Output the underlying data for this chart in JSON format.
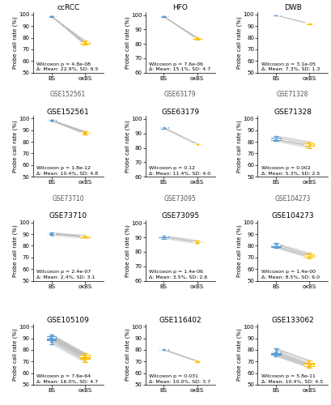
{
  "panels": [
    {
      "title": "ccRCC",
      "subtitle": "GSE152561",
      "wilcoxon": "Wilcoxon p = 4.8e-08",
      "delta": "Δ: Mean: 22.9%, SD: 9.5",
      "bs_mean": 98.5,
      "bs_std": 0.25,
      "bs_min": 97.8,
      "bs_max": 99.1,
      "ox_mean": 75.6,
      "ox_std": 5.0,
      "ox_min": 63.0,
      "ox_max": 84.0,
      "n": 20,
      "ylim": [
        50,
        102
      ],
      "yticks": [
        50,
        60,
        70,
        80,
        90,
        100
      ]
    },
    {
      "title": "HFO",
      "subtitle": "GSE63179",
      "wilcoxon": "Wilcoxon p = 7.6e-06",
      "delta": "Δ: Mean: 15.1%, SD: 4.7",
      "bs_mean": 99.0,
      "bs_std": 0.12,
      "bs_min": 98.7,
      "bs_max": 99.3,
      "ox_mean": 83.9,
      "ox_std": 2.0,
      "ox_min": 80.5,
      "ox_max": 87.0,
      "n": 16,
      "ylim": [
        60,
        102
      ],
      "yticks": [
        60,
        70,
        80,
        90,
        100
      ]
    },
    {
      "title": "DWB",
      "subtitle": "GSE71328",
      "wilcoxon": "Wilcoxon p = 3.1e-05",
      "delta": "Δ: Mean: 7.3%, SD: 1.3",
      "bs_mean": 99.35,
      "bs_std": 0.1,
      "bs_min": 99.1,
      "bs_max": 99.5,
      "ox_mean": 92.05,
      "ox_std": 0.3,
      "ox_min": 91.5,
      "ox_max": 92.5,
      "n": 7,
      "ylim": [
        50,
        102
      ],
      "yticks": [
        50,
        60,
        70,
        80,
        90,
        100
      ]
    },
    {
      "title": "GSE152561",
      "subtitle": "GSE73710",
      "wilcoxon": "Wilcoxon p = 1.8e-12",
      "delta": "Δ: Mean: 10.4%, SD: 4.8",
      "bs_mean": 98.4,
      "bs_std": 0.3,
      "bs_min": 97.8,
      "bs_max": 99.0,
      "ox_mean": 88.0,
      "ox_std": 2.5,
      "ox_min": 74.0,
      "ox_max": 91.5,
      "n": 28,
      "ylim": [
        50,
        102
      ],
      "yticks": [
        50,
        60,
        70,
        80,
        90,
        100
      ]
    },
    {
      "title": "GSE63179",
      "subtitle": "GSE73095",
      "wilcoxon": "Wilcoxon p = 0.12",
      "delta": "Δ: Mean: 11.4%, SD: 4.0",
      "bs_mean": 93.9,
      "bs_std": 0.2,
      "bs_min": 93.5,
      "bs_max": 94.2,
      "ox_mean": 82.5,
      "ox_std": 0.8,
      "ox_min": 81.0,
      "ox_max": 83.5,
      "n": 7,
      "ylim": [
        60,
        102
      ],
      "yticks": [
        60,
        70,
        80,
        90,
        100
      ]
    },
    {
      "title": "GSE71328",
      "subtitle": "GSE104273",
      "wilcoxon": "Wilcoxon p = 0.002",
      "delta": "Δ: Mean: 5.3%, SD: 2.5",
      "bs_mean": 82.0,
      "bs_std": 1.5,
      "bs_min": 78.5,
      "bs_max": 85.0,
      "ox_mean": 76.7,
      "ox_std": 1.8,
      "ox_min": 73.0,
      "ox_max": 80.0,
      "n": 15,
      "ylim": [
        50,
        102
      ],
      "yticks": [
        50,
        60,
        70,
        80,
        90,
        100
      ]
    },
    {
      "title": "GSE73710",
      "subtitle": "",
      "wilcoxon": "Wilcoxon p = 2.4e-07",
      "delta": "Δ: Mean: 2.4%, SD: 3.1",
      "bs_mean": 90.1,
      "bs_std": 0.8,
      "bs_min": 88.5,
      "bs_max": 91.5,
      "ox_mean": 87.7,
      "ox_std": 1.0,
      "ox_min": 85.5,
      "ox_max": 89.5,
      "n": 16,
      "ylim": [
        50,
        102
      ],
      "yticks": [
        50,
        60,
        70,
        80,
        90,
        100
      ]
    },
    {
      "title": "GSE73095",
      "subtitle": "",
      "wilcoxon": "Wilcoxon p = 1.4e-06",
      "delta": "Δ: Mean: 3.5%, SD: 2.6",
      "bs_mean": 90.2,
      "bs_std": 0.8,
      "bs_min": 88.5,
      "bs_max": 91.5,
      "ox_mean": 86.7,
      "ox_std": 1.0,
      "ox_min": 84.0,
      "ox_max": 88.0,
      "n": 10,
      "ylim": [
        60,
        102
      ],
      "yticks": [
        60,
        70,
        80,
        90,
        100
      ]
    },
    {
      "title": "GSE104273",
      "subtitle": "",
      "wilcoxon": "Wilcoxon p = 1.4e-00",
      "delta": "Δ: Mean: 8.5%, SD: 6.0",
      "bs_mean": 80.5,
      "bs_std": 1.5,
      "bs_min": 77.5,
      "bs_max": 84.0,
      "ox_mean": 72.0,
      "ox_std": 1.5,
      "ox_min": 69.5,
      "ox_max": 75.0,
      "n": 16,
      "ylim": [
        50,
        102
      ],
      "yticks": [
        50,
        60,
        70,
        80,
        90,
        100
      ]
    },
    {
      "title": "GSE105109",
      "subtitle": "",
      "wilcoxon": "Wilcoxon p = 7.6e-64",
      "delta": "Δ: Mean: 16.0%, SD: 4.7",
      "bs_mean": 90.2,
      "bs_std": 2.8,
      "bs_min": 79.0,
      "bs_max": 93.5,
      "ox_mean": 74.2,
      "ox_std": 2.8,
      "ox_min": 63.0,
      "ox_max": 77.5,
      "n": 40,
      "ylim": [
        50,
        102
      ],
      "yticks": [
        50,
        60,
        70,
        80,
        90,
        100
      ]
    },
    {
      "title": "GSE116402",
      "subtitle": "",
      "wilcoxon": "Wilcoxon p = 0.031",
      "delta": "Δ: Mean: 10.0%, SD: 3.7",
      "bs_mean": 80.1,
      "bs_std": 0.3,
      "bs_min": 79.5,
      "bs_max": 80.8,
      "ox_mean": 70.1,
      "ox_std": 0.3,
      "ox_min": 69.5,
      "ox_max": 70.8,
      "n": 10,
      "ylim": [
        50,
        102
      ],
      "yticks": [
        50,
        60,
        70,
        80,
        90,
        100
      ]
    },
    {
      "title": "GSE133062",
      "subtitle": "",
      "wilcoxon": "Wilcoxon p = 5.8e-11",
      "delta": "Δ: Mean: 10.4%, SD: 4.5",
      "bs_mean": 78.0,
      "bs_std": 2.0,
      "bs_min": 74.5,
      "bs_max": 82.0,
      "ox_mean": 67.6,
      "ox_std": 2.0,
      "ox_min": 64.5,
      "ox_max": 71.5,
      "n": 25,
      "ylim": [
        50,
        102
      ],
      "yticks": [
        50,
        60,
        70,
        80,
        90,
        100
      ]
    }
  ],
  "bs_color": "#5B9BD5",
  "oxbs_color": "#FFC000",
  "line_color": "#BEBEBE",
  "title_fontsize": 6.5,
  "tick_fontsize": 5.0,
  "ylabel_fontsize": 5.0,
  "annot_fontsize": 4.5,
  "subtitle_fontsize": 5.5
}
